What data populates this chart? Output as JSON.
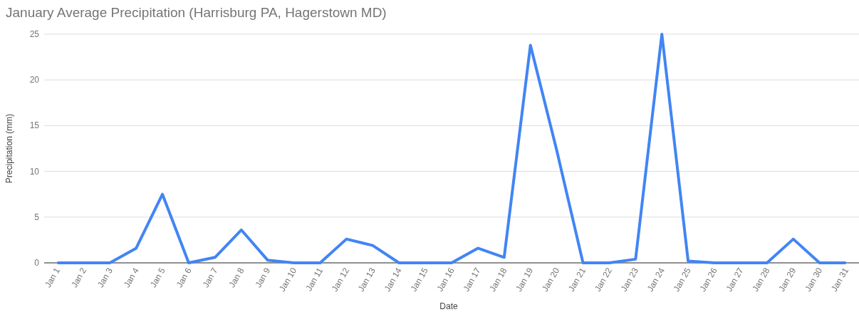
{
  "chart_data": {
    "type": "line",
    "title": "January Average Precipitation (Harrisburg PA, Hagerstown MD)",
    "xlabel": "Date",
    "ylabel": "Precipitation (mm)",
    "categories": [
      "Jan 1",
      "Jan 2",
      "Jan 3",
      "Jan 4",
      "Jan 5",
      "Jan 6",
      "Jan 7",
      "Jan 8",
      "Jan 9",
      "Jan 10",
      "Jan 11",
      "Jan 12",
      "Jan 13",
      "Jan 14",
      "Jan 15",
      "Jan 16",
      "Jan 17",
      "Jan 18",
      "Jan 19",
      "Jan 20",
      "Jan 21",
      "Jan 22",
      "Jan 23",
      "Jan 24",
      "Jan 25",
      "Jan 26",
      "Jan 27",
      "Jan 28",
      "Jan 29",
      "Jan 30",
      "Jan 31"
    ],
    "series": [
      {
        "color": "#4285f4",
        "values": [
          0,
          0,
          0,
          1.6,
          7.5,
          0,
          0.6,
          3.6,
          0.3,
          0,
          0,
          2.6,
          1.9,
          0,
          0,
          0,
          1.6,
          0.6,
          23.8,
          12.3,
          0,
          0,
          0.4,
          25,
          0.2,
          0,
          0,
          0,
          2.6,
          0,
          0
        ]
      }
    ],
    "ylim": [
      0,
      25
    ],
    "yticks": [
      0,
      5,
      10,
      15,
      20,
      25
    ],
    "grid": "y",
    "marker": "none",
    "line_style": "solid"
  }
}
